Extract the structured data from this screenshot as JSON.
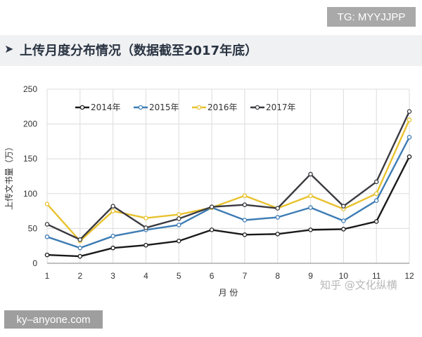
{
  "header": {
    "badge": "TG: MYYJJPP",
    "arrow": "➤",
    "title": "上传月度分布情况（数据截至2017年底）"
  },
  "footer": {
    "badge": "ky–anyone.com",
    "watermark": "知乎 @文化纵横"
  },
  "colors": {
    "series": [
      "#1a1a1a",
      "#3d7cb4",
      "#e8c22e",
      "#3a3a40"
    ],
    "grid": "#dcdcdc",
    "axis": "#9a9a9a",
    "text": "#333333"
  },
  "chart_data": {
    "type": "line",
    "x": [
      1,
      2,
      3,
      4,
      5,
      6,
      7,
      8,
      9,
      10,
      11,
      12
    ],
    "ylim": [
      0,
      250
    ],
    "yticks": [
      0,
      50,
      100,
      150,
      200,
      250
    ],
    "xlabel": "月 份",
    "ylabel": "上传文书量（万）",
    "legend_position": "top-left",
    "grid": true,
    "series": [
      {
        "name": "2014年",
        "values": [
          12,
          10,
          22,
          26,
          32,
          48,
          41,
          42,
          48,
          49,
          60,
          153
        ]
      },
      {
        "name": "2015年",
        "values": [
          38,
          22,
          39,
          48,
          55,
          80,
          62,
          66,
          80,
          61,
          90,
          181
        ]
      },
      {
        "name": "2016年",
        "values": [
          85,
          32,
          75,
          65,
          70,
          80,
          97,
          79,
          97,
          78,
          100,
          206
        ]
      },
      {
        "name": "2017年",
        "values": [
          56,
          34,
          82,
          51,
          64,
          81,
          84,
          79,
          128,
          82,
          117,
          218
        ]
      }
    ]
  }
}
